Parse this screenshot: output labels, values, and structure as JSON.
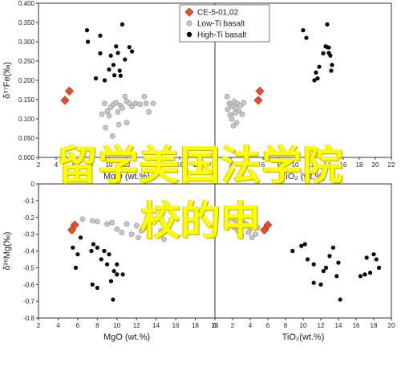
{
  "overlay": {
    "line1": "留学美国法学院",
    "line2": "校的申"
  },
  "colors": {
    "ce": "#e0522f",
    "ce_stroke": "#b23a1d",
    "low_ti": "#c8c8c8",
    "low_ti_stroke": "#8a8a8a",
    "high_ti": "#000000",
    "axis": "#333333"
  },
  "legend": {
    "placement": "top-center",
    "items": [
      {
        "label": "CE-5-01,02",
        "marker": "diamond",
        "color": "#e0522f"
      },
      {
        "label": "Low-Ti basalt",
        "marker": "circle",
        "color": "#c8c8c8"
      },
      {
        "label": "High-Ti basalt",
        "marker": "circle",
        "color": "#000000"
      }
    ]
  },
  "chart_data": [
    {
      "type": "scatter",
      "panel": "top-left",
      "xlabel": "MgO (wt.%)",
      "ylabel": "δ⁵⁷Fe(‰)",
      "xlim": [
        2,
        22
      ],
      "ylim": [
        0,
        0.4
      ],
      "xticks": [
        "2",
        "4",
        "6",
        "8",
        "10",
        "12",
        "14",
        "16",
        "18",
        "20",
        "22"
      ],
      "yticks": [
        "0.000",
        "0.050",
        "0.100",
        "0.150",
        "0.200",
        "0.250",
        "0.300",
        "0.350",
        "0.400"
      ],
      "grid": false,
      "series": [
        {
          "name": "CE-5-01,02",
          "marker": "diamond",
          "points": [
            [
              5.5,
              0.172
            ],
            [
              5.0,
              0.148
            ]
          ]
        },
        {
          "name": "Low-Ti basalt",
          "marker": "circle",
          "points": [
            [
              9.5,
              0.14
            ],
            [
              9.8,
              0.12
            ],
            [
              10.0,
              0.108
            ],
            [
              10.2,
              0.13
            ],
            [
              10.5,
              0.138
            ],
            [
              10.8,
              0.142
            ],
            [
              11.0,
              0.118
            ],
            [
              11.3,
              0.135
            ],
            [
              11.5,
              0.128
            ],
            [
              11.8,
              0.158
            ],
            [
              12.0,
              0.145
            ],
            [
              12.3,
              0.14
            ],
            [
              12.6,
              0.132
            ],
            [
              13.0,
              0.14
            ],
            [
              9.2,
              0.112
            ],
            [
              9.6,
              0.077
            ],
            [
              10.4,
              0.055
            ],
            [
              11.1,
              0.085
            ],
            [
              12.0,
              0.09
            ],
            [
              14.0,
              0.158
            ],
            [
              14.2,
              0.14
            ],
            [
              14.5,
              0.118
            ],
            [
              15.0,
              0.14
            ],
            [
              13.5,
              0.138
            ]
          ]
        },
        {
          "name": "High-Ti basalt",
          "marker": "circle",
          "points": [
            [
              7.5,
              0.33
            ],
            [
              7.6,
              0.3
            ],
            [
              9.0,
              0.316
            ],
            [
              9.0,
              0.27
            ],
            [
              10.2,
              0.264
            ],
            [
              10.8,
              0.288
            ],
            [
              11.0,
              0.271
            ],
            [
              10.5,
              0.24
            ],
            [
              11.2,
              0.225
            ],
            [
              11.5,
              0.345
            ],
            [
              12.3,
              0.286
            ],
            [
              12.6,
              0.275
            ],
            [
              10.0,
              0.228
            ],
            [
              10.6,
              0.213
            ],
            [
              9.5,
              0.2
            ],
            [
              8.5,
              0.205
            ],
            [
              11.8,
              0.254
            ],
            [
              11.3,
              0.212
            ]
          ]
        }
      ]
    },
    {
      "type": "scatter",
      "panel": "top-right",
      "xlabel": "TiO₂ (wt.%)",
      "ylabel": "",
      "xlim": [
        0,
        22
      ],
      "ylim": [
        0,
        0.4
      ],
      "xticks": [
        "0",
        "2",
        "4",
        "6",
        "8",
        "10",
        "12",
        "14",
        "16",
        "18",
        "20",
        "22"
      ],
      "grid": false,
      "series": [
        {
          "name": "CE-5-01,02",
          "marker": "diamond",
          "points": [
            [
              5.6,
              0.172
            ],
            [
              5.4,
              0.148
            ]
          ]
        },
        {
          "name": "Low-Ti basalt",
          "marker": "circle",
          "points": [
            [
              1.5,
              0.158
            ],
            [
              1.8,
              0.14
            ],
            [
              2.0,
              0.138
            ],
            [
              2.2,
              0.132
            ],
            [
              2.4,
              0.145
            ],
            [
              2.6,
              0.128
            ],
            [
              2.8,
              0.14
            ],
            [
              3.0,
              0.12
            ],
            [
              3.2,
              0.135
            ],
            [
              2.5,
              0.115
            ],
            [
              1.9,
              0.11
            ],
            [
              2.1,
              0.1
            ],
            [
              3.4,
              0.112
            ],
            [
              2.7,
              0.09
            ],
            [
              1.6,
              0.125
            ],
            [
              3.6,
              0.142
            ],
            [
              2.3,
              0.082
            ]
          ]
        },
        {
          "name": "High-Ti basalt",
          "marker": "circle",
          "points": [
            [
              11.0,
              0.33
            ],
            [
              11.4,
              0.31
            ],
            [
              12.6,
              0.22
            ],
            [
              13.0,
              0.235
            ],
            [
              12.8,
              0.205
            ],
            [
              13.5,
              0.27
            ],
            [
              13.8,
              0.288
            ],
            [
              14.0,
              0.286
            ],
            [
              14.2,
              0.271
            ],
            [
              14.4,
              0.264
            ],
            [
              14.0,
              0.345
            ],
            [
              14.6,
              0.24
            ],
            [
              14.5,
              0.225
            ],
            [
              12.4,
              0.2
            ],
            [
              14.2,
              0.285
            ]
          ]
        }
      ]
    },
    {
      "type": "scatter",
      "panel": "bottom-left",
      "xlabel": "MgO (wt.%)",
      "ylabel": "δ²⁶Mg(‰)",
      "xlim": [
        2,
        20
      ],
      "ylim": [
        -0.8,
        0
      ],
      "xticks": [
        "2",
        "4",
        "6",
        "8",
        "10",
        "12",
        "14",
        "16",
        "18",
        "20"
      ],
      "yticks": [
        "0",
        "-0.1",
        "-0.2",
        "-0.3",
        "-0.4",
        "-0.5",
        "-0.6",
        "-0.7",
        "-0.8"
      ],
      "grid": false,
      "series": [
        {
          "name": "CE-5-01,02",
          "marker": "diamond",
          "points": [
            [
              5.7,
              -0.245
            ],
            [
              5.4,
              -0.275
            ]
          ]
        },
        {
          "name": "Low-Ti basalt",
          "marker": "circle",
          "points": [
            [
              6.5,
              -0.21
            ],
            [
              7.5,
              -0.22
            ],
            [
              8.0,
              -0.225
            ],
            [
              9.5,
              -0.23
            ],
            [
              10.0,
              -0.27
            ],
            [
              10.5,
              -0.29
            ],
            [
              9.0,
              -0.24
            ],
            [
              11.0,
              -0.24
            ],
            [
              12.0,
              -0.25
            ],
            [
              12.5,
              -0.28
            ],
            [
              13.0,
              -0.26
            ],
            [
              11.5,
              -0.3
            ],
            [
              12.2,
              -0.32
            ],
            [
              14.5,
              -0.28
            ],
            [
              14.8,
              -0.33
            ]
          ]
        },
        {
          "name": "High-Ti basalt",
          "marker": "circle",
          "points": [
            [
              5.5,
              -0.38
            ],
            [
              5.8,
              -0.5
            ],
            [
              6.3,
              -0.32
            ],
            [
              6.0,
              -0.42
            ],
            [
              7.4,
              -0.4
            ],
            [
              7.6,
              -0.36
            ],
            [
              8.0,
              -0.38
            ],
            [
              8.4,
              -0.45
            ],
            [
              8.7,
              -0.4
            ],
            [
              9.0,
              -0.48
            ],
            [
              9.2,
              -0.42
            ],
            [
              9.7,
              -0.52
            ],
            [
              10.0,
              -0.54
            ],
            [
              10.6,
              -0.54
            ],
            [
              9.4,
              -0.58
            ],
            [
              8.0,
              -0.62
            ],
            [
              7.5,
              -0.6
            ],
            [
              9.6,
              -0.69
            ],
            [
              10.0,
              -0.48
            ]
          ]
        }
      ]
    },
    {
      "type": "scatter",
      "panel": "bottom-right",
      "xlabel": "TiO₂(wt.%)",
      "ylabel": "",
      "xlim": [
        0,
        20
      ],
      "ylim": [
        -0.8,
        0
      ],
      "xticks": [
        "0",
        "2",
        "4",
        "6",
        "8",
        "10",
        "12",
        "14",
        "16",
        "18",
        "20"
      ],
      "grid": false,
      "series": [
        {
          "name": "CE-5-01,02",
          "marker": "diamond",
          "points": [
            [
              6.0,
              -0.245
            ],
            [
              5.6,
              -0.275
            ]
          ]
        },
        {
          "name": "Low-Ti basalt",
          "marker": "circle",
          "points": [
            [
              2.0,
              -0.21
            ],
            [
              2.4,
              -0.22
            ],
            [
              2.8,
              -0.225
            ],
            [
              3.2,
              -0.23
            ],
            [
              3.6,
              -0.24
            ],
            [
              4.0,
              -0.27
            ],
            [
              4.4,
              -0.25
            ],
            [
              4.8,
              -0.26
            ],
            [
              2.6,
              -0.28
            ],
            [
              3.0,
              -0.31
            ],
            [
              3.8,
              -0.29
            ],
            [
              4.2,
              -0.32
            ],
            [
              2.2,
              -0.26
            ],
            [
              4.6,
              -0.3
            ]
          ]
        },
        {
          "name": "High-Ti basalt",
          "marker": "circle",
          "points": [
            [
              8.8,
              -0.4
            ],
            [
              9.8,
              -0.37
            ],
            [
              10.2,
              -0.36
            ],
            [
              10.5,
              -0.45
            ],
            [
              11.2,
              -0.48
            ],
            [
              11.2,
              -0.59
            ],
            [
              12.0,
              -0.6
            ],
            [
              12.3,
              -0.52
            ],
            [
              12.6,
              -0.5
            ],
            [
              13.0,
              -0.43
            ],
            [
              13.4,
              -0.38
            ],
            [
              13.8,
              -0.55
            ],
            [
              14.0,
              -0.47
            ],
            [
              14.2,
              -0.69
            ],
            [
              17.0,
              -0.54
            ],
            [
              17.6,
              -0.53
            ],
            [
              18.0,
              -0.42
            ],
            [
              18.3,
              -0.45
            ],
            [
              18.6,
              -0.5
            ],
            [
              17.2,
              -0.44
            ],
            [
              16.5,
              -0.55
            ]
          ]
        }
      ]
    }
  ]
}
